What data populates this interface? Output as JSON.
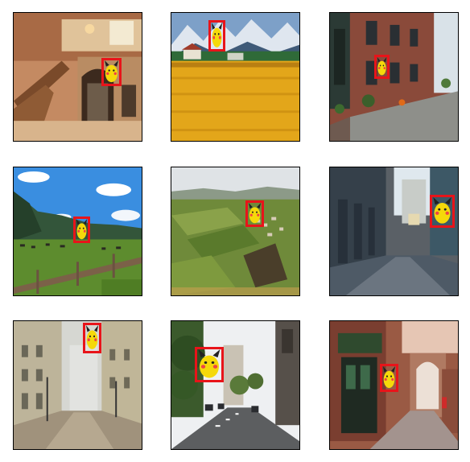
{
  "figure": {
    "rows": 3,
    "cols": 3,
    "box_color": "#e8141a",
    "pikachu_color": "#f5d90a",
    "panels": [
      {
        "scene": "mansion-staircase-interior"
      },
      {
        "scene": "sunflower-field-with-mountains"
      },
      {
        "scene": "brick-rowhouse-street"
      },
      {
        "scene": "mountain-pasture-with-cattle"
      },
      {
        "scene": "aerial-farmland-valley"
      },
      {
        "scene": "modern-city-street"
      },
      {
        "scene": "foggy-pedestrian-street"
      },
      {
        "scene": "tree-lined-city-avenue"
      },
      {
        "scene": "old-brick-alley"
      }
    ]
  }
}
